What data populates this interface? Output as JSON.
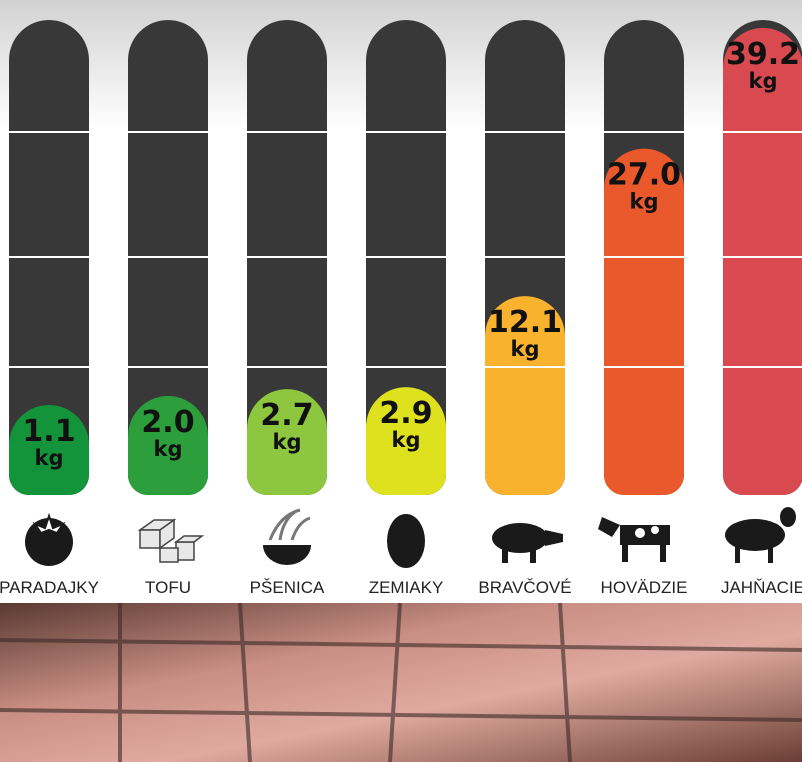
{
  "chart_data": {
    "type": "bar",
    "categories": [
      "PARADAJKY",
      "TOFU",
      "PŠENICA",
      "ZEMIAKY",
      "BRAVČOVÉ",
      "HOVÄDZIE",
      "JAHŇACIE"
    ],
    "values": [
      1.1,
      2.0,
      2.7,
      2.9,
      12.1,
      27.0,
      39.2
    ],
    "value_labels": [
      "1.1",
      "2.0",
      "2.7",
      "2.9",
      "12.1",
      "27.0",
      "39.2"
    ],
    "unit": "kg",
    "colors": [
      "#14943a",
      "#2c9e3c",
      "#8dc63f",
      "#dee11e",
      "#f8b22e",
      "#e9592b",
      "#d84a50"
    ],
    "ylim": [
      -8,
      40
    ]
  }
}
